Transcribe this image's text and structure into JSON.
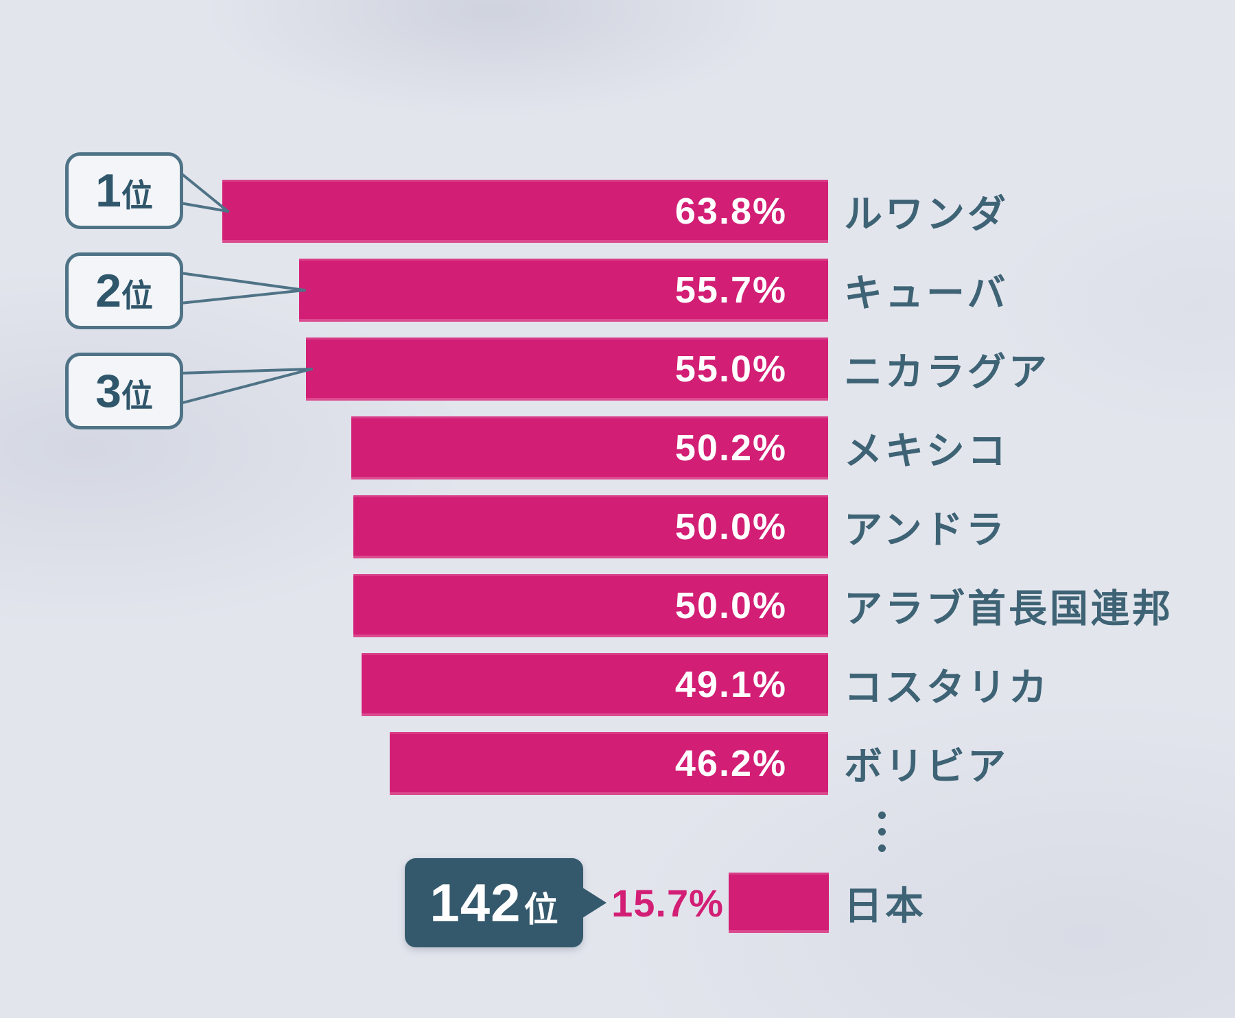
{
  "background_color": "#e3e5ed",
  "colors": {
    "bar": "#d21e74",
    "bar_value_text": "#ffffff",
    "category_text": "#3e6375",
    "callout_border": "#4f7386",
    "callout_fill": "#f3f5f9",
    "callout_text": "#2f566a",
    "badge_fill": "#35596c",
    "badge_text": "#ffffff",
    "ellipsis_dots": "#3c6273"
  },
  "chart_data": {
    "type": "bar",
    "orientation": "horizontal",
    "unit": "%",
    "value_range": [
      0,
      63.8
    ],
    "grid": false,
    "legend": false,
    "bars_right_aligned": true,
    "rows": [
      {
        "category": "ルワンダ",
        "value": 63.8,
        "value_label": "63.8%"
      },
      {
        "category": "キューバ",
        "value": 55.7,
        "value_label": "55.7%"
      },
      {
        "category": "ニカラグア",
        "value": 55.0,
        "value_label": "55.0%"
      },
      {
        "category": "メキシコ",
        "value": 50.2,
        "value_label": "50.2%"
      },
      {
        "category": "アンドラ",
        "value": 50.0,
        "value_label": "50.0%"
      },
      {
        "category": "アラブ首長国連邦",
        "value": 50.0,
        "value_label": "50.0%"
      },
      {
        "category": "コスタリカ",
        "value": 49.1,
        "value_label": "49.1%"
      },
      {
        "category": "ボリビア",
        "value": 46.2,
        "value_label": "46.2%"
      }
    ],
    "rank_callouts": [
      {
        "number": "1",
        "suffix": "位",
        "target_category": "ルワンダ"
      },
      {
        "number": "2",
        "suffix": "位",
        "target_category": "キューバ"
      },
      {
        "number": "3",
        "suffix": "位",
        "target_category": "ニカラグア"
      }
    ],
    "ellipsis_between": "⋮",
    "highlight": {
      "rank_number": "142",
      "rank_suffix": "位",
      "category": "日本",
      "value": 15.7,
      "value_label": "15.7%"
    }
  }
}
